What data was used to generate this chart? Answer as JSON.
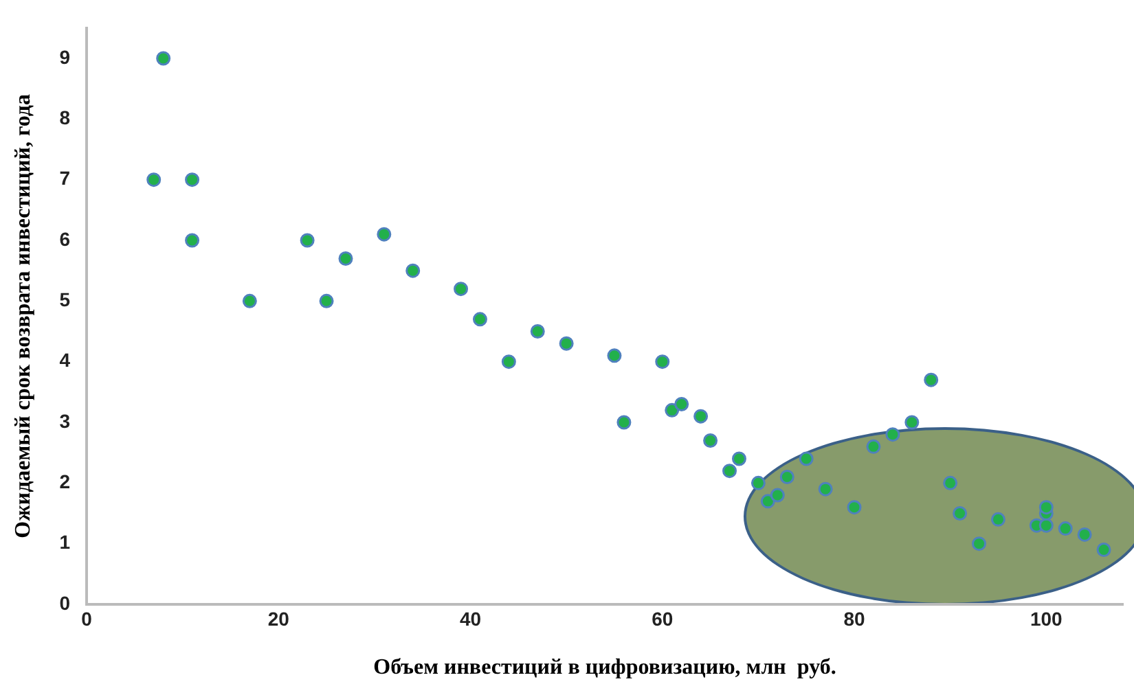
{
  "chart_data": {
    "type": "scatter",
    "xlabel": "Объем инвестиций в цифровизацию, млн  руб.",
    "ylabel": "Ожидаемый срок возврата инвестиций, года",
    "x": [
      7,
      8,
      11,
      11,
      17,
      23,
      25,
      27,
      31,
      34,
      39,
      41,
      44,
      47,
      50,
      55,
      56,
      60,
      61,
      62,
      64,
      65,
      67,
      68,
      70,
      71,
      72,
      73,
      75,
      77,
      80,
      82,
      84,
      86,
      88,
      90,
      91,
      93,
      95,
      99,
      100,
      100,
      100,
      102,
      104,
      106
    ],
    "series": [
      {
        "color": "#22b04b",
        "values": [
          7,
          9,
          7,
          6,
          5,
          6,
          5,
          5.7,
          6.1,
          5.5,
          5.2,
          4.7,
          4,
          4.5,
          4.3,
          4.1,
          3,
          4,
          3.2,
          3.3,
          3.1,
          2.7,
          2.2,
          2.4,
          2,
          1.7,
          1.8,
          2.1,
          2.4,
          1.9,
          1.6,
          2.6,
          2.8,
          3,
          3.7,
          2,
          1.5,
          1,
          1.4,
          1.3,
          1.3,
          1.5,
          1.6,
          1.25,
          1.15,
          0.9
        ]
      }
    ],
    "xlim": [
      0,
      108
    ],
    "xticks": [
      0,
      20,
      40,
      60,
      80,
      100
    ],
    "ylim": [
      0,
      9.5
    ],
    "yticks": [
      0,
      1,
      2,
      3,
      4,
      5,
      6,
      7,
      8,
      9
    ],
    "grid": false,
    "legend": false,
    "marker": "circle"
  }
}
